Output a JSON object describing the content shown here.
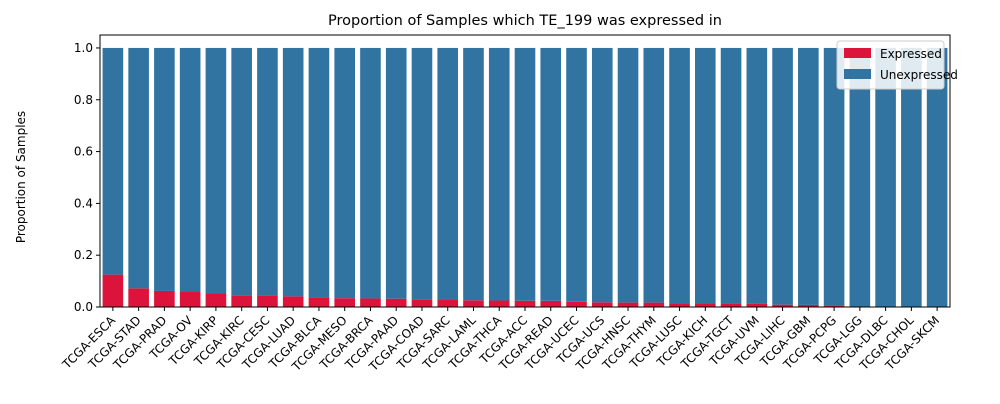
{
  "chart_data": {
    "type": "bar",
    "stacked": true,
    "title": "Proportion of Samples which TE_199 was expressed in",
    "xlabel": "",
    "ylabel": "Proportion of Samples",
    "ylim": [
      0,
      1.05
    ],
    "yticks": [
      "0.0",
      "0.2",
      "0.4",
      "0.6",
      "0.8",
      "1.0"
    ],
    "ytick_values": [
      0,
      0.2,
      0.4,
      0.6,
      0.8,
      1.0
    ],
    "grid": false,
    "legend_position": "top-right",
    "categories": [
      "TCGA-ESCA",
      "TCGA-STAD",
      "TCGA-PRAD",
      "TCGA-OV",
      "TCGA-KIRP",
      "TCGA-KIRC",
      "TCGA-CESC",
      "TCGA-LUAD",
      "TCGA-BLCA",
      "TCGA-MESO",
      "TCGA-BRCA",
      "TCGA-PAAD",
      "TCGA-COAD",
      "TCGA-SARC",
      "TCGA-LAML",
      "TCGA-THCA",
      "TCGA-ACC",
      "TCGA-READ",
      "TCGA-UCEC",
      "TCGA-UCS",
      "TCGA-HNSC",
      "TCGA-THYM",
      "TCGA-LUSC",
      "TCGA-KICH",
      "TCGA-TGCT",
      "TCGA-UVM",
      "TCGA-LIHC",
      "TCGA-GBM",
      "TCGA-PCPG",
      "TCGA-LGG",
      "TCGA-DLBC",
      "TCGA-CHOL",
      "TCGA-SKCM"
    ],
    "series": [
      {
        "name": "Expressed",
        "color": "#dc143c",
        "values": [
          0.125,
          0.072,
          0.062,
          0.06,
          0.052,
          0.045,
          0.044,
          0.041,
          0.038,
          0.034,
          0.033,
          0.032,
          0.03,
          0.027,
          0.026,
          0.025,
          0.024,
          0.024,
          0.02,
          0.018,
          0.017,
          0.017,
          0.015,
          0.015,
          0.014,
          0.013,
          0.009,
          0.008,
          0.007,
          0.0,
          0.0,
          0.0,
          0.0
        ]
      },
      {
        "name": "Unexpressed",
        "color": "#3274a1",
        "values": [
          0.875,
          0.928,
          0.938,
          0.94,
          0.948,
          0.955,
          0.956,
          0.959,
          0.962,
          0.966,
          0.967,
          0.968,
          0.97,
          0.973,
          0.974,
          0.975,
          0.976,
          0.976,
          0.98,
          0.982,
          0.983,
          0.983,
          0.985,
          0.985,
          0.986,
          0.987,
          0.991,
          0.992,
          0.993,
          1.0,
          1.0,
          1.0,
          1.0
        ]
      }
    ]
  }
}
